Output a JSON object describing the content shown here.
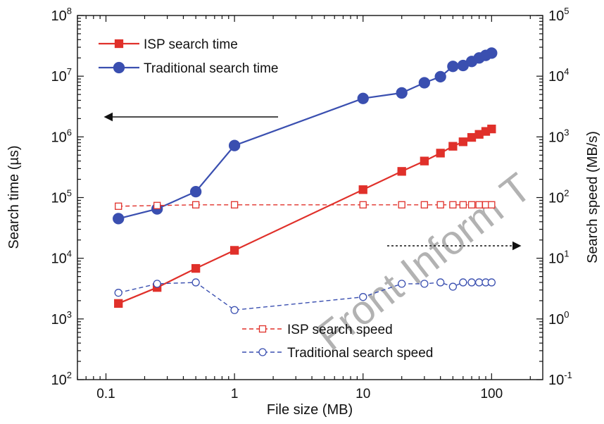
{
  "chart_data": {
    "type": "line",
    "xlabel": "File size (MB)",
    "ylabel_left": "Search time (µs)",
    "ylabel_right": "Search speed (MB/s)",
    "xscale": "log",
    "yscale_left": "log",
    "yscale_right": "log",
    "xlim": [
      0.06,
      250
    ],
    "ylim_left": [
      100,
      100000000
    ],
    "ylim_right": [
      0.1,
      100000
    ],
    "x_ticks": [
      {
        "value": 0.1,
        "label": "0.1"
      },
      {
        "value": 1,
        "label": "1"
      },
      {
        "value": 10,
        "label": "10"
      },
      {
        "value": 100,
        "label": "100"
      }
    ],
    "y_ticks_left": [
      {
        "value": 100,
        "base": "10",
        "exp": "2"
      },
      {
        "value": 1000,
        "base": "10",
        "exp": "3"
      },
      {
        "value": 10000,
        "base": "10",
        "exp": "4"
      },
      {
        "value": 100000,
        "base": "10",
        "exp": "5"
      },
      {
        "value": 1000000,
        "base": "10",
        "exp": "6"
      },
      {
        "value": 10000000,
        "base": "10",
        "exp": "7"
      },
      {
        "value": 100000000,
        "base": "10",
        "exp": "8"
      }
    ],
    "y_ticks_right": [
      {
        "value": 0.1,
        "base": "10",
        "exp": "-1"
      },
      {
        "value": 1,
        "base": "10",
        "exp": "0"
      },
      {
        "value": 10,
        "base": "10",
        "exp": "1"
      },
      {
        "value": 100,
        "base": "10",
        "exp": "2"
      },
      {
        "value": 1000,
        "base": "10",
        "exp": "3"
      },
      {
        "value": 10000,
        "base": "10",
        "exp": "4"
      },
      {
        "value": 100000,
        "base": "10",
        "exp": "5"
      }
    ],
    "series": [
      {
        "name": "ISP search time",
        "axis": "left",
        "color": "#e0302a",
        "marker": "square",
        "filled": true,
        "dashed": false,
        "x": [
          0.125,
          0.25,
          0.5,
          1,
          10,
          20,
          30,
          40,
          50,
          60,
          70,
          80,
          90,
          100
        ],
        "y": [
          1800,
          3300,
          6800,
          13500,
          135000,
          270000,
          400000,
          540000,
          700000,
          830000,
          980000,
          1100000,
          1230000,
          1350000
        ]
      },
      {
        "name": "Traditional search time",
        "axis": "left",
        "color": "#3a4fb0",
        "marker": "circle",
        "filled": true,
        "dashed": false,
        "x": [
          0.125,
          0.25,
          0.5,
          1,
          10,
          20,
          30,
          40,
          50,
          60,
          70,
          80,
          90,
          100
        ],
        "y": [
          45000,
          65000,
          125000,
          720000,
          4300000,
          5300000,
          7800000,
          9800000,
          14500000,
          15000000,
          17500000,
          20000000,
          22000000,
          24000000
        ]
      },
      {
        "name": "ISP search speed",
        "axis": "right",
        "color": "#e0302a",
        "marker": "square",
        "filled": false,
        "dashed": true,
        "x": [
          0.125,
          0.25,
          0.5,
          1,
          10,
          20,
          30,
          40,
          50,
          60,
          70,
          80,
          90,
          100
        ],
        "y": [
          72,
          74,
          76,
          76,
          76,
          76,
          76,
          76,
          76,
          76,
          76,
          76,
          76,
          76
        ]
      },
      {
        "name": "Traditional search speed",
        "axis": "right",
        "color": "#3a4fb0",
        "marker": "circle",
        "filled": false,
        "dashed": true,
        "x": [
          0.125,
          0.25,
          0.5,
          1,
          10,
          20,
          30,
          40,
          50,
          60,
          70,
          80,
          90,
          100
        ],
        "y": [
          2.7,
          3.8,
          4.0,
          1.4,
          2.3,
          3.8,
          3.8,
          4.0,
          3.4,
          4.0,
          4.0,
          4.0,
          4.0,
          4.0
        ]
      }
    ],
    "legend_top": {
      "position": "top-left",
      "entries": [
        "ISP search time",
        "Traditional search time"
      ]
    },
    "legend_bottom": {
      "position": "bottom-center",
      "entries": [
        "ISP search speed",
        "Traditional search speed"
      ]
    },
    "annotations": [
      {
        "type": "arrow",
        "direction": "left",
        "style": "solid",
        "meaning": "search time series use left axis"
      },
      {
        "type": "arrow",
        "direction": "right",
        "style": "dotted",
        "meaning": "search speed series use right axis"
      }
    ],
    "watermark": "Front Inform T",
    "grid": false
  }
}
